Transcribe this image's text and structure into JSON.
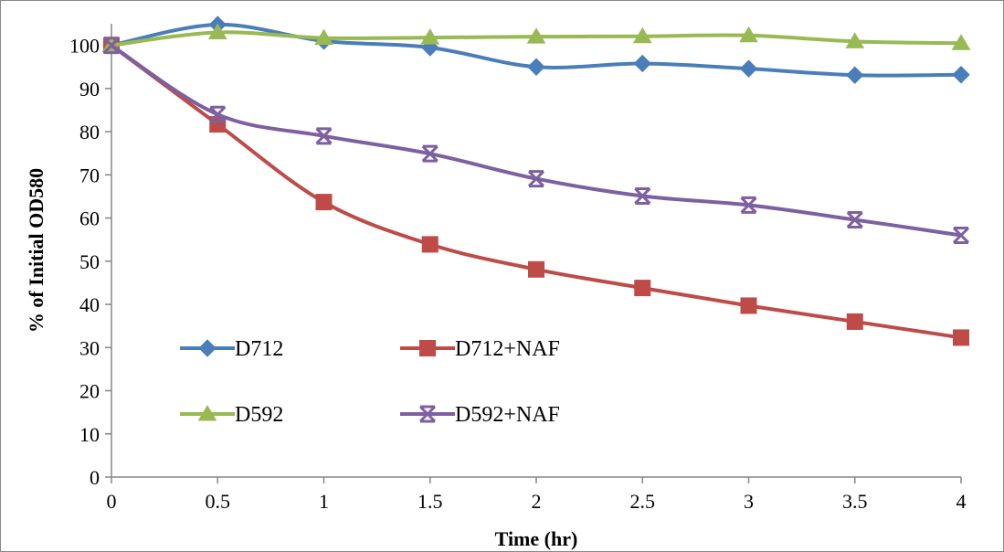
{
  "chart_data": {
    "type": "line",
    "xlabel": "Time (hr)",
    "ylabel": "% of Initial OD580",
    "x": [
      0,
      0.5,
      1,
      1.5,
      2,
      2.5,
      3,
      3.5,
      4
    ],
    "x_tick_labels": [
      "0",
      "0.5",
      "1",
      "1.5",
      "2",
      "2.5",
      "3",
      "3.5",
      "4"
    ],
    "xlim": [
      0,
      4
    ],
    "ylim": [
      0,
      105
    ],
    "y_ticks": [
      0,
      10,
      20,
      30,
      40,
      50,
      60,
      70,
      80,
      90,
      100
    ],
    "y_tick_labels": [
      "0",
      "10",
      "20",
      "30",
      "40",
      "50",
      "60",
      "70",
      "80",
      "90",
      "100"
    ],
    "grid": false,
    "legend_position": "lower-left",
    "series": [
      {
        "name": "D712",
        "marker": "diamond",
        "color": "#4a7ebb",
        "values": [
          100,
          104.8,
          101,
          99.5,
          95,
          95.8,
          94.6,
          93.1,
          93.2
        ]
      },
      {
        "name": "D712+NAF",
        "marker": "square",
        "color": "#be4b48",
        "values": [
          100,
          81.7,
          63.7,
          53.9,
          48.1,
          43.8,
          39.7,
          36,
          32.3
        ]
      },
      {
        "name": "D592",
        "marker": "triangle",
        "color": "#98b954",
        "values": [
          100,
          103,
          101.7,
          101.8,
          102,
          102.1,
          102.3,
          100.9,
          100.5
        ]
      },
      {
        "name": "D592+NAF",
        "marker": "star",
        "color": "#7d60a0",
        "values": [
          100,
          84,
          79,
          74.9,
          69.1,
          65.1,
          63,
          59.6,
          56
        ]
      }
    ]
  }
}
